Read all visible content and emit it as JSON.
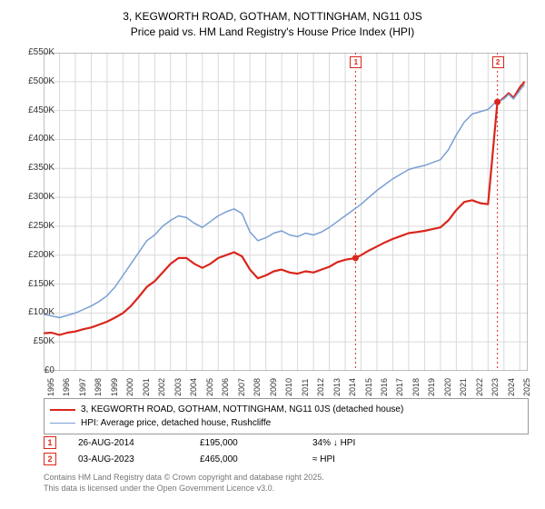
{
  "title_line1": "3, KEGWORTH ROAD, GOTHAM, NOTTINGHAM, NG11 0JS",
  "title_line2": "Price paid vs. HM Land Registry's House Price Index (HPI)",
  "chart": {
    "type": "line",
    "background": "#ffffff",
    "plot_border_color": "#808080",
    "grid_color": "#d9d9d9",
    "x_years": [
      1995,
      1996,
      1997,
      1998,
      1999,
      2000,
      2001,
      2002,
      2003,
      2004,
      2005,
      2006,
      2007,
      2008,
      2009,
      2010,
      2011,
      2012,
      2013,
      2014,
      2015,
      2016,
      2017,
      2018,
      2019,
      2020,
      2021,
      2022,
      2023,
      2024,
      2025
    ],
    "x_range": [
      1995,
      2025.5
    ],
    "y_range": [
      0,
      550
    ],
    "y_ticks": [
      0,
      50,
      100,
      150,
      200,
      250,
      300,
      350,
      400,
      450,
      500,
      550
    ],
    "y_tick_labels": [
      "£0",
      "£50K",
      "£100K",
      "£150K",
      "£200K",
      "£250K",
      "£300K",
      "£350K",
      "£400K",
      "£450K",
      "£500K",
      "£550K"
    ],
    "series": [
      {
        "name": "price_paid",
        "color": "#d9261c",
        "width": 2.2,
        "points": [
          [
            1995,
            65
          ],
          [
            1995.5,
            66
          ],
          [
            1996,
            62
          ],
          [
            1996.5,
            66
          ],
          [
            1997,
            68
          ],
          [
            1997.5,
            72
          ],
          [
            1998,
            75
          ],
          [
            1998.5,
            80
          ],
          [
            1999,
            85
          ],
          [
            1999.5,
            92
          ],
          [
            2000,
            100
          ],
          [
            2000.5,
            112
          ],
          [
            2001,
            128
          ],
          [
            2001.5,
            145
          ],
          [
            2002,
            155
          ],
          [
            2002.5,
            170
          ],
          [
            2003,
            185
          ],
          [
            2003.5,
            195
          ],
          [
            2004,
            195
          ],
          [
            2004.5,
            185
          ],
          [
            2005,
            178
          ],
          [
            2005.5,
            185
          ],
          [
            2006,
            195
          ],
          [
            2006.5,
            200
          ],
          [
            2007,
            205
          ],
          [
            2007.5,
            198
          ],
          [
            2008,
            175
          ],
          [
            2008.5,
            160
          ],
          [
            2009,
            165
          ],
          [
            2009.5,
            172
          ],
          [
            2010,
            175
          ],
          [
            2010.5,
            170
          ],
          [
            2011,
            168
          ],
          [
            2011.5,
            172
          ],
          [
            2012,
            170
          ],
          [
            2012.5,
            175
          ],
          [
            2013,
            180
          ],
          [
            2013.5,
            188
          ],
          [
            2014,
            192
          ],
          [
            2014.65,
            195
          ],
          [
            2015,
            200
          ],
          [
            2015.5,
            208
          ],
          [
            2016,
            215
          ],
          [
            2016.5,
            222
          ],
          [
            2017,
            228
          ],
          [
            2017.5,
            233
          ],
          [
            2018,
            238
          ],
          [
            2018.5,
            240
          ],
          [
            2019,
            242
          ],
          [
            2019.5,
            245
          ],
          [
            2020,
            248
          ],
          [
            2020.5,
            260
          ],
          [
            2021,
            278
          ],
          [
            2021.5,
            292
          ],
          [
            2022,
            295
          ],
          [
            2022.5,
            290
          ],
          [
            2023,
            288
          ],
          [
            2023.59,
            465
          ],
          [
            2023.8,
            468
          ],
          [
            2024,
            472
          ],
          [
            2024.3,
            480
          ],
          [
            2024.6,
            472
          ],
          [
            2025,
            490
          ],
          [
            2025.3,
            500
          ]
        ]
      },
      {
        "name": "hpi",
        "color": "#7a9fd4",
        "width": 1.5,
        "points": [
          [
            1995,
            98
          ],
          [
            1995.5,
            95
          ],
          [
            1996,
            92
          ],
          [
            1996.5,
            96
          ],
          [
            1997,
            100
          ],
          [
            1997.5,
            106
          ],
          [
            1998,
            112
          ],
          [
            1998.5,
            120
          ],
          [
            1999,
            130
          ],
          [
            1999.5,
            145
          ],
          [
            2000,
            165
          ],
          [
            2000.5,
            185
          ],
          [
            2001,
            205
          ],
          [
            2001.5,
            225
          ],
          [
            2002,
            235
          ],
          [
            2002.5,
            250
          ],
          [
            2003,
            260
          ],
          [
            2003.5,
            268
          ],
          [
            2004,
            265
          ],
          [
            2004.5,
            255
          ],
          [
            2005,
            248
          ],
          [
            2005.5,
            258
          ],
          [
            2006,
            268
          ],
          [
            2006.5,
            275
          ],
          [
            2007,
            280
          ],
          [
            2007.5,
            272
          ],
          [
            2008,
            240
          ],
          [
            2008.5,
            225
          ],
          [
            2009,
            230
          ],
          [
            2009.5,
            238
          ],
          [
            2010,
            242
          ],
          [
            2010.5,
            235
          ],
          [
            2011,
            232
          ],
          [
            2011.5,
            238
          ],
          [
            2012,
            235
          ],
          [
            2012.5,
            240
          ],
          [
            2013,
            248
          ],
          [
            2013.5,
            258
          ],
          [
            2014,
            268
          ],
          [
            2014.5,
            278
          ],
          [
            2015,
            288
          ],
          [
            2015.5,
            300
          ],
          [
            2016,
            312
          ],
          [
            2016.5,
            322
          ],
          [
            2017,
            332
          ],
          [
            2017.5,
            340
          ],
          [
            2018,
            348
          ],
          [
            2018.5,
            352
          ],
          [
            2019,
            355
          ],
          [
            2019.5,
            360
          ],
          [
            2020,
            365
          ],
          [
            2020.5,
            382
          ],
          [
            2021,
            408
          ],
          [
            2021.5,
            430
          ],
          [
            2022,
            444
          ],
          [
            2022.5,
            448
          ],
          [
            2023,
            452
          ],
          [
            2023.5,
            465
          ],
          [
            2024,
            470
          ],
          [
            2024.3,
            478
          ],
          [
            2024.6,
            470
          ],
          [
            2025,
            485
          ],
          [
            2025.3,
            495
          ]
        ]
      }
    ],
    "sale_markers": [
      {
        "n": "1",
        "year": 2014.65,
        "color": "#d9261c"
      },
      {
        "n": "2",
        "year": 2023.59,
        "color": "#d9261c"
      }
    ],
    "vlines": [
      {
        "year": 2014.65,
        "color": "#d9261c"
      },
      {
        "year": 2023.59,
        "color": "#d9261c"
      }
    ]
  },
  "legend": {
    "rows": [
      {
        "color": "#d9261c",
        "width": 2.5,
        "label": "3, KEGWORTH ROAD, GOTHAM, NOTTINGHAM, NG11 0JS (detached house)"
      },
      {
        "color": "#7a9fd4",
        "width": 1.5,
        "label": "HPI: Average price, detached house, Rushcliffe"
      }
    ]
  },
  "events": [
    {
      "n": "1",
      "color": "#d9261c",
      "date": "26-AUG-2014",
      "price": "£195,000",
      "delta": "34% ↓ HPI"
    },
    {
      "n": "2",
      "color": "#d9261c",
      "date": "03-AUG-2023",
      "price": "£465,000",
      "delta": "≈ HPI"
    }
  ],
  "copyright_line1": "Contains HM Land Registry data © Crown copyright and database right 2025.",
  "copyright_line2": "This data is licensed under the Open Government Licence v3.0."
}
